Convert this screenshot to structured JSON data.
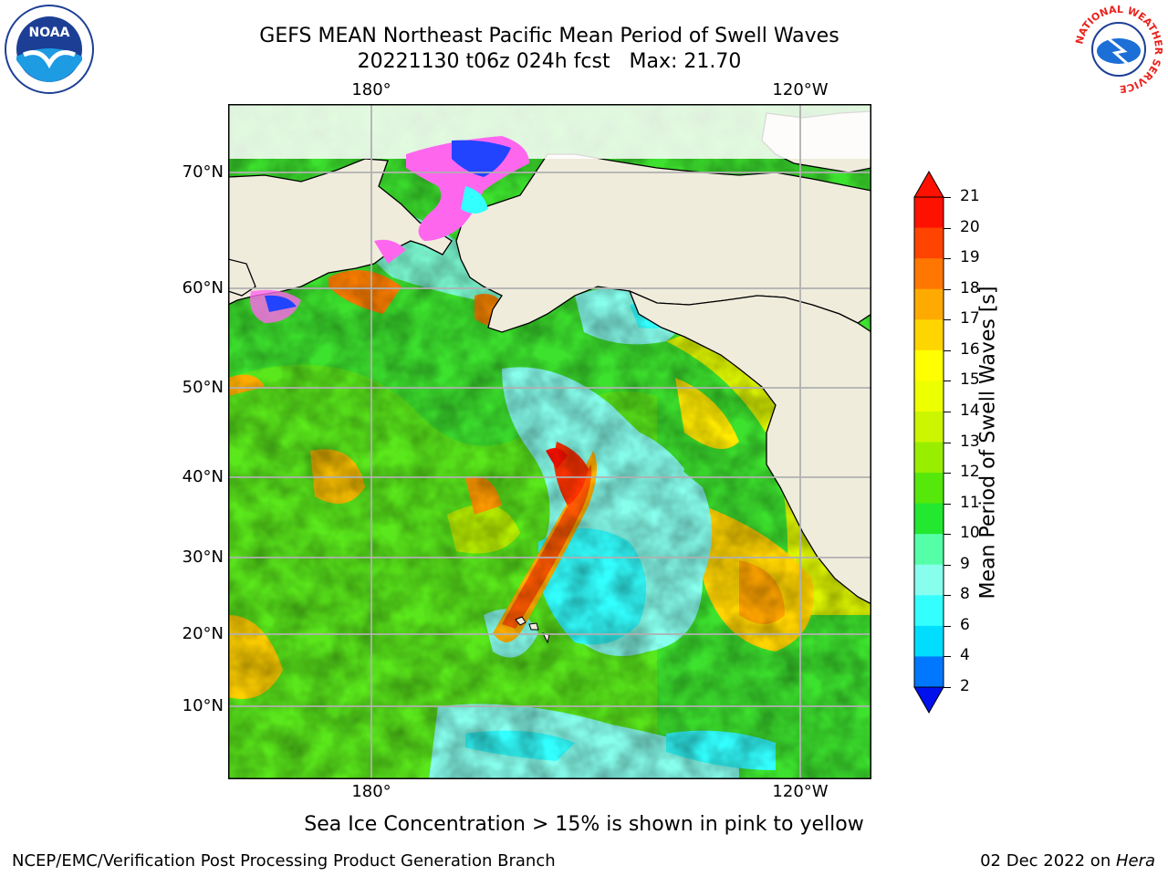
{
  "header": {
    "title_line1": "GEFS MEAN Northeast Pacific Mean Period of Swell Waves",
    "title_line2": "20221130 t06z 024h fcst   Max: 21.70"
  },
  "logos": {
    "left": "NOAA",
    "right": "NATIONAL WEATHER SERVICE"
  },
  "map": {
    "lon_labels_top": [
      "180°",
      "120°W"
    ],
    "lon_labels_bottom": [
      "180°",
      "120°W"
    ],
    "lat_labels": [
      "70°N",
      "60°N",
      "50°N",
      "40°N",
      "30°N",
      "20°N",
      "10°N"
    ],
    "colors": {
      "land": "#efecdc",
      "ocean_low": "#33ffff",
      "ocean_mid": "#22ee22",
      "ocean_high": "#ff7700",
      "ice": "#ff55ee"
    }
  },
  "colorbar": {
    "label": "Mean Period of Swell Waves [s]",
    "ticks": [
      "21",
      "20",
      "19",
      "18",
      "17",
      "16",
      "15",
      "14",
      "13",
      "12",
      "11",
      "10",
      "9",
      "8",
      "6",
      "4",
      "2"
    ],
    "colors": [
      "#ff1100",
      "#ff4400",
      "#ff7700",
      "#ffaa00",
      "#ffd500",
      "#ffff00",
      "#eeff00",
      "#ccf500",
      "#99ee00",
      "#55e80a",
      "#22e830",
      "#55ffa8",
      "#88ffee",
      "#33ffff",
      "#00ddff",
      "#0077ff",
      "#0011ee"
    ]
  },
  "note": "Sea Ice Concentration > 15% is shown in pink to yellow",
  "footer": {
    "left": "NCEP/EMC/Verification Post Processing Product Generation Branch",
    "right_prefix": "02 Dec 2022 on ",
    "right_italic": "Hera"
  }
}
